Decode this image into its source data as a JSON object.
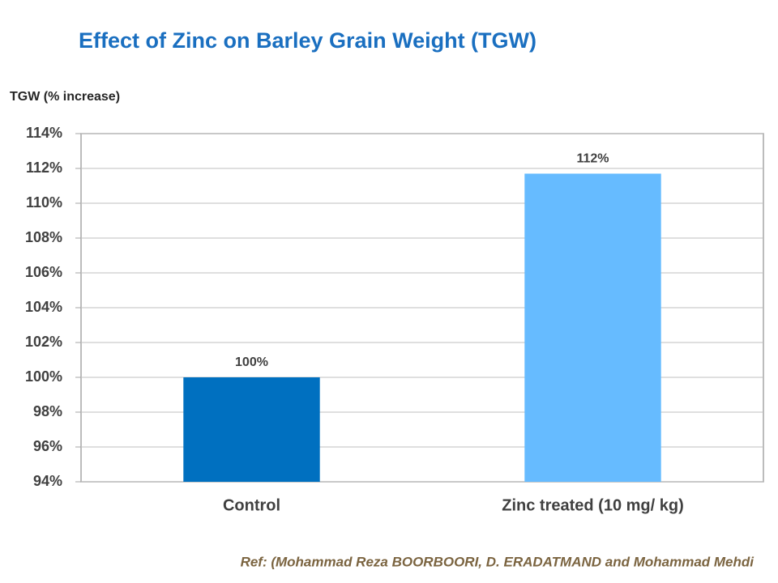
{
  "chart_data": {
    "type": "bar",
    "title": "Effect of Zinc on Barley Grain Weight (TGW)",
    "y_label": "TGW (% increase)",
    "categories": [
      "Control",
      "Zinc treated (10 mg/ kg)"
    ],
    "values": [
      100,
      111.7
    ],
    "value_labels": [
      "100%",
      "112%"
    ],
    "colors": [
      "#0070c0",
      "#66bbff"
    ],
    "ylim": [
      94,
      114
    ],
    "yticks": [
      {
        "value": 94,
        "label": "94%"
      },
      {
        "value": 96,
        "label": "96%"
      },
      {
        "value": 98,
        "label": "98%"
      },
      {
        "value": 100,
        "label": "100%"
      },
      {
        "value": 102,
        "label": "102%"
      },
      {
        "value": 104,
        "label": "104%"
      },
      {
        "value": 106,
        "label": "106%"
      },
      {
        "value": 108,
        "label": "108%"
      },
      {
        "value": 110,
        "label": "110%"
      },
      {
        "value": 112,
        "label": "112%"
      },
      {
        "value": 114,
        "label": "114%"
      }
    ],
    "grid": true,
    "reference": "Ref: (Mohammad Reza BOORBOORI,  D. ERADATMAND and Mohammad Mehdi"
  }
}
